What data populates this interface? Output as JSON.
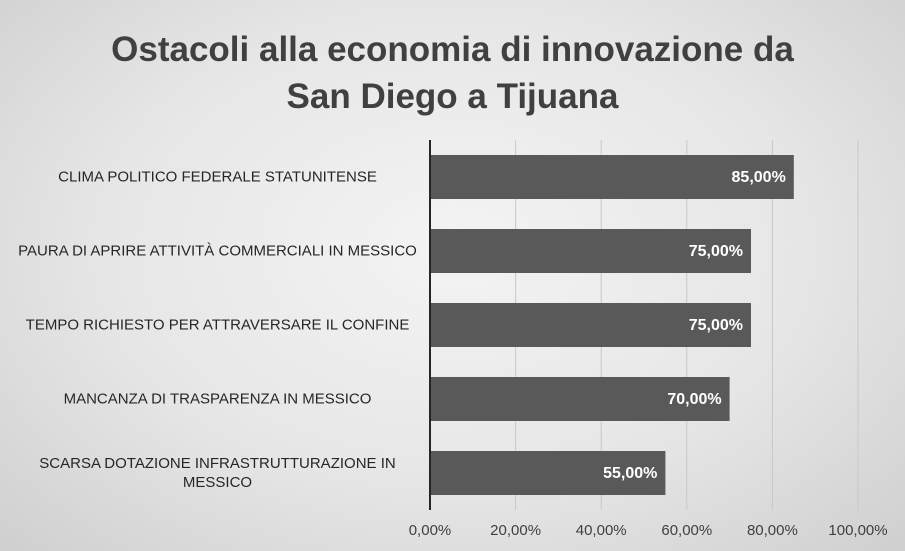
{
  "chart_data": {
    "type": "bar",
    "orientation": "horizontal",
    "title": "Ostacoli alla economia di innovazione da San Diego a Tijuana",
    "categories": [
      "CLIMA POLITICO FEDERALE STATUNITENSE",
      "PAURA DI APRIRE ATTIVITÀ COMMERCIALI IN MESSICO",
      "TEMPO RICHIESTO PER ATTRAVERSARE IL CONFINE",
      "MANCANZA DI TRASPARENZA IN MESSICO",
      "SCARSA DOTAZIONE INFRASTRUTTURAZIONE IN MESSICO"
    ],
    "values": [
      85,
      75,
      75,
      70,
      55
    ],
    "value_labels": [
      "85,00%",
      "75,00%",
      "75,00%",
      "70,00%",
      "55,00%"
    ],
    "color": "#595959",
    "xlim": [
      0,
      100
    ],
    "xticks": [
      {
        "value": 0,
        "label": "0,00%"
      },
      {
        "value": 20,
        "label": "20,00%"
      },
      {
        "value": 40,
        "label": "40,00%"
      },
      {
        "value": 60,
        "label": "60,00%"
      },
      {
        "value": 80,
        "label": "80,00%"
      },
      {
        "value": 100,
        "label": "100,00%"
      }
    ],
    "grid": true
  }
}
